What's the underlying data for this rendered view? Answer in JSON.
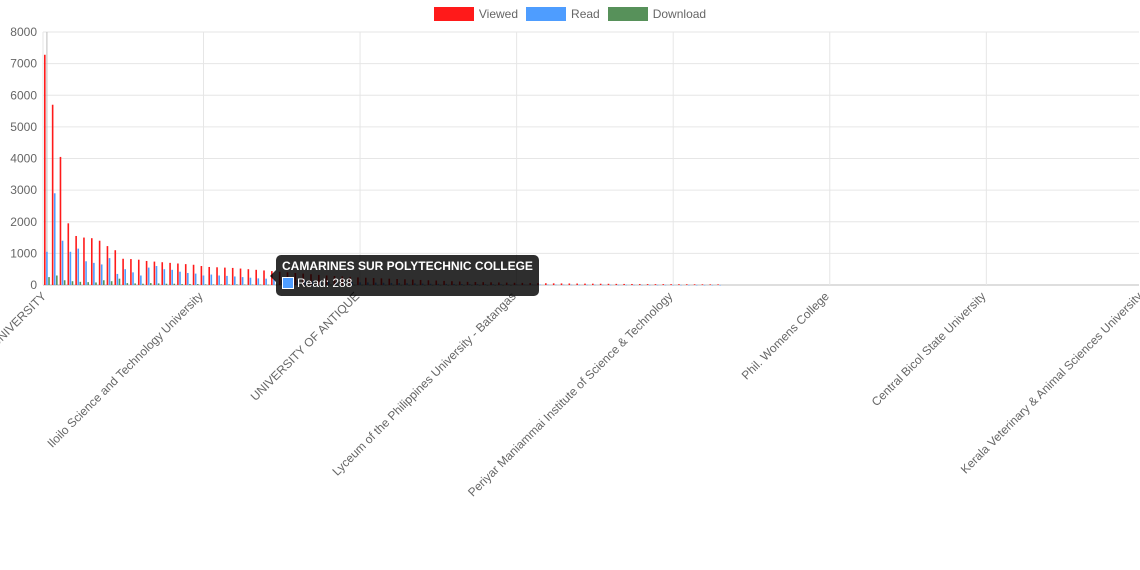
{
  "chart_data": {
    "type": "bar",
    "ylim": [
      0,
      8000
    ],
    "yticks": [
      0,
      1000,
      2000,
      3000,
      4000,
      5000,
      6000,
      7000,
      8000
    ],
    "grid": true,
    "legend_position": "top",
    "category_count": 140,
    "tick_labels": [
      "CAVITE STATE UNIVERSITY",
      "Iloilo Science and Technology University",
      "UNIVERSITY OF ANTIQUE",
      "Lyceum of the Philippines University - Batangas",
      "Periyar Maniammai Institute of Science & Technology",
      "Phil. Womens College",
      "Central Bicol State University",
      "Kerala Veterinary & Animal Sciences University"
    ],
    "series": [
      {
        "name": "Viewed",
        "color": "#ff1a1a",
        "values": [
          7280,
          5700,
          4050,
          1950,
          1550,
          1500,
          1480,
          1400,
          1230,
          1100,
          830,
          820,
          800,
          760,
          740,
          720,
          700,
          680,
          660,
          640,
          600,
          570,
          560,
          550,
          540,
          520,
          500,
          480,
          460,
          440,
          420,
          400,
          380,
          360,
          340,
          320,
          300,
          285,
          270,
          255,
          240,
          230,
          220,
          210,
          200,
          190,
          180,
          170,
          160,
          150,
          140,
          130,
          120,
          110,
          100,
          95,
          90,
          85,
          80,
          75,
          70,
          66,
          62,
          58,
          55,
          52,
          50,
          48,
          46,
          44,
          42,
          40,
          38,
          36,
          34,
          32,
          30,
          29,
          28,
          27,
          26,
          25,
          24,
          23,
          22,
          21,
          20,
          0,
          0,
          0,
          0,
          0,
          0,
          0,
          0,
          0,
          0,
          0,
          0,
          0,
          0,
          0,
          0,
          0,
          0,
          0,
          0,
          0,
          0,
          0,
          0,
          0,
          0,
          0,
          0,
          0,
          0,
          0,
          0,
          0,
          0,
          0,
          0,
          0,
          0,
          0,
          0,
          0,
          0,
          0,
          0,
          0,
          0,
          0,
          0,
          0,
          0,
          0,
          0,
          0
        ]
      },
      {
        "name": "Read",
        "color": "#4e9dff",
        "values": [
          1050,
          2900,
          1400,
          1050,
          1150,
          750,
          700,
          650,
          850,
          350,
          500,
          400,
          300,
          550,
          600,
          500,
          480,
          420,
          380,
          360,
          300,
          330,
          300,
          288,
          270,
          250,
          230,
          210,
          200,
          180,
          170,
          160,
          150,
          140,
          130,
          120,
          110,
          100,
          95,
          90,
          85,
          80,
          75,
          70,
          65,
          60,
          55,
          50,
          45,
          40,
          38,
          36,
          34,
          32,
          30,
          28,
          26,
          24,
          22,
          20,
          18,
          16,
          15,
          14,
          13,
          12,
          11,
          10,
          10,
          9,
          9,
          8,
          8,
          7,
          7,
          6,
          6,
          5,
          5,
          5,
          4,
          4,
          4,
          3,
          3,
          3,
          2,
          0,
          0,
          0,
          0,
          0,
          0,
          0,
          0,
          0,
          0,
          0,
          0,
          0,
          0,
          0,
          0,
          0,
          0,
          0,
          0,
          0,
          0,
          0,
          0,
          0,
          0,
          0,
          0,
          0,
          0,
          0,
          0,
          0,
          0,
          0,
          0,
          0,
          0,
          0,
          0,
          0,
          0,
          0,
          0,
          0,
          0,
          0,
          0,
          0,
          0,
          0,
          0,
          0
        ]
      },
      {
        "name": "Download",
        "color": "#57915a",
        "values": [
          250,
          300,
          150,
          120,
          100,
          90,
          80,
          150,
          120,
          200,
          60,
          50,
          40,
          60,
          50,
          40,
          40,
          30,
          30,
          30,
          20,
          20,
          20,
          20,
          20,
          15,
          15,
          15,
          10,
          10,
          10,
          10,
          10,
          8,
          8,
          8,
          6,
          6,
          6,
          5,
          5,
          5,
          4,
          4,
          4,
          3,
          3,
          3,
          2,
          2,
          2,
          2,
          2,
          1,
          1,
          1,
          1,
          1,
          1,
          1,
          0,
          0,
          0,
          0,
          0,
          0,
          0,
          0,
          0,
          0,
          0,
          0,
          0,
          0,
          0,
          0,
          0,
          0,
          0,
          0,
          0,
          0,
          0,
          0,
          0,
          0,
          0,
          0,
          0,
          0,
          0,
          0,
          0,
          0,
          0,
          0,
          0,
          0,
          0,
          0,
          0,
          0,
          0,
          0,
          0,
          0,
          0,
          0,
          0,
          0,
          0,
          0,
          0,
          0,
          0,
          0,
          0,
          0,
          0,
          0,
          0,
          0,
          0,
          0,
          0,
          0,
          0,
          0,
          0,
          0,
          0,
          0,
          0,
          0,
          0,
          0,
          0,
          0,
          0,
          0
        ]
      }
    ]
  },
  "tooltip": {
    "title": "CAMARINES SUR POLYTECHNIC COLLEGE",
    "line": "Read: 288",
    "swatch_color": "#4e9dff"
  }
}
